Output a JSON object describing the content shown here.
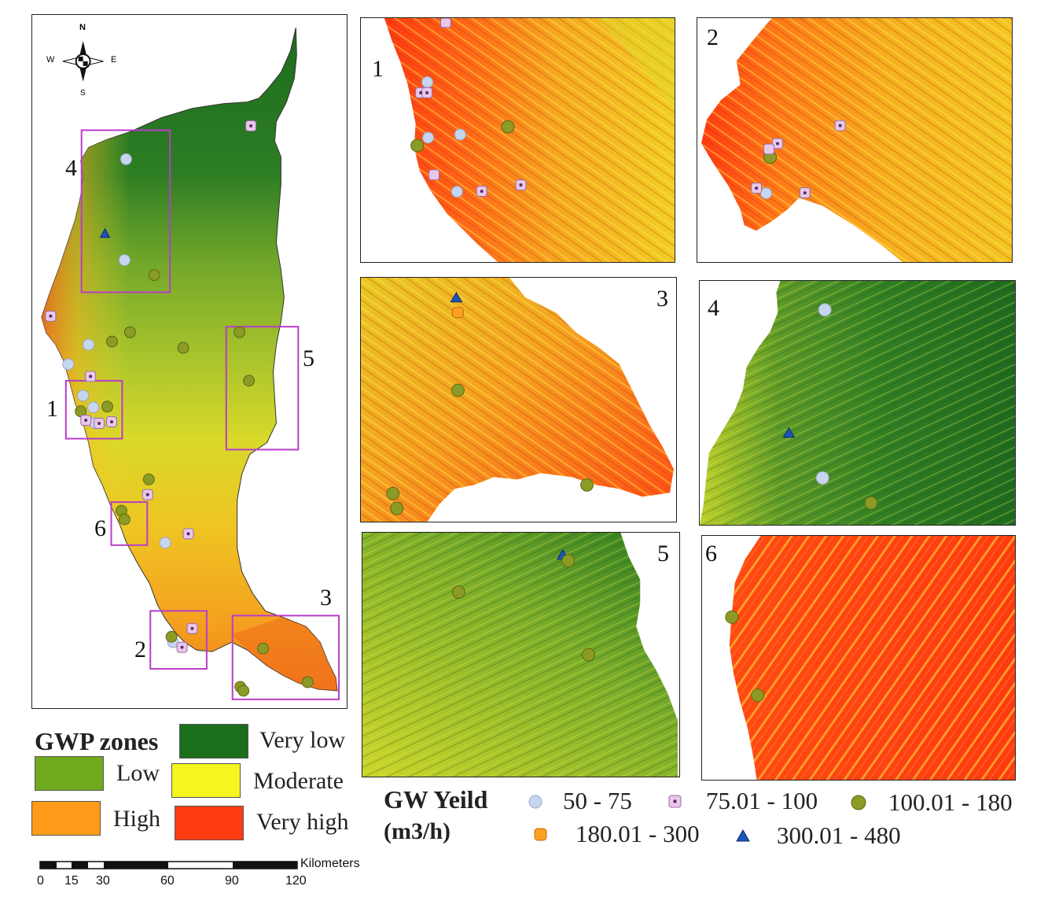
{
  "compass": {
    "n": "N",
    "s": "S",
    "e": "E",
    "w": "W"
  },
  "main_box_labels": [
    "1",
    "2",
    "3",
    "4",
    "5",
    "6"
  ],
  "inset_labels": [
    "1",
    "2",
    "3",
    "4",
    "5",
    "6"
  ],
  "gwp_legend": {
    "title": "GWP zones",
    "zones": [
      {
        "label": "Very low",
        "color": "#1b6f1b"
      },
      {
        "label": "Low",
        "color": "#6faa1e"
      },
      {
        "label": "Moderate",
        "color": "#f5f520"
      },
      {
        "label": "High",
        "color": "#ff9a1a"
      },
      {
        "label": "Very high",
        "color": "#ff3b12"
      }
    ]
  },
  "yield_legend": {
    "title_line1": "GW Yeild",
    "title_line2": "(m3/h)",
    "classes": [
      {
        "label": "50 - 75",
        "symbol": "circle",
        "color": "#c7d6f0"
      },
      {
        "label": "75.01 - 100",
        "symbol": "square-dot",
        "color": "#e8c8e8"
      },
      {
        "label": "100.01 - 180",
        "symbol": "circle",
        "color": "#8c9a26"
      },
      {
        "label": "180.01 - 300",
        "symbol": "square",
        "color": "#ffa020"
      },
      {
        "label": "300.01 - 480",
        "symbol": "triangle",
        "color": "#1a56b8"
      }
    ]
  },
  "scale_bar": {
    "unit": "Kilometers",
    "ticks": [
      "0",
      "15",
      "30",
      "60",
      "90",
      "120"
    ]
  },
  "box_color": "#b93cc9"
}
